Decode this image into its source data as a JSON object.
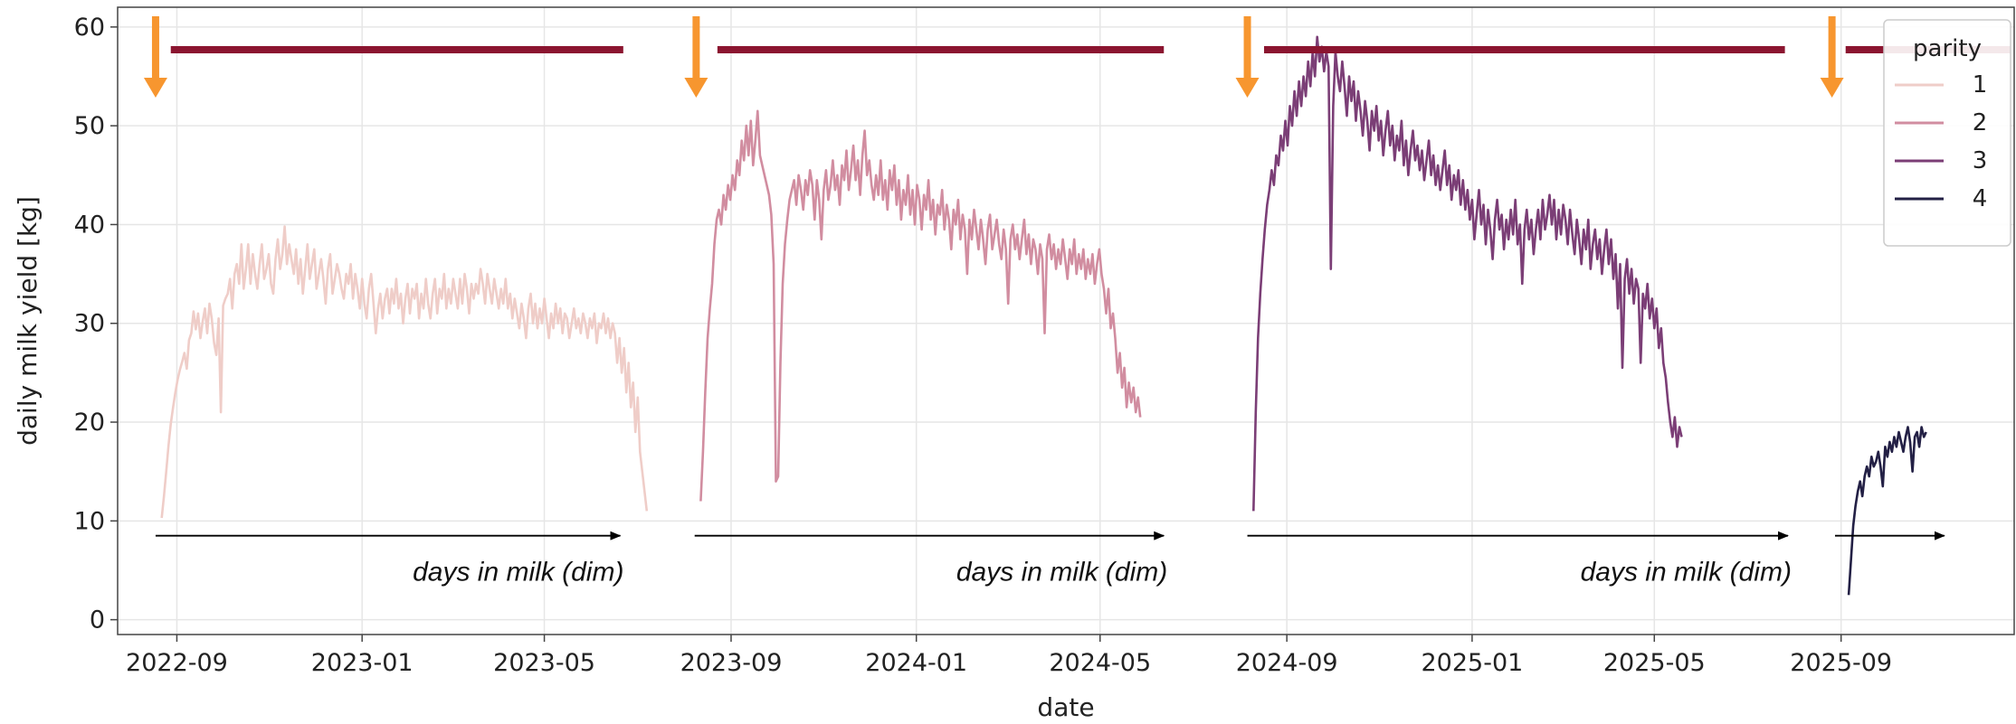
{
  "chart_data": {
    "type": "line",
    "title": "",
    "xlabel": "date",
    "ylabel": "daily milk yield [kg]",
    "xlim": [
      "2022-07-24",
      "2025-12-24"
    ],
    "ylim": [
      -1.5,
      62
    ],
    "x_ticks": [
      "2022-09",
      "2023-01",
      "2023-05",
      "2023-09",
      "2024-01",
      "2024-05",
      "2024-09",
      "2025-01",
      "2025-05",
      "2025-09"
    ],
    "y_ticks": [
      0,
      10,
      20,
      30,
      40,
      50,
      60
    ],
    "grid": true,
    "legend": {
      "title": "parity",
      "position": "top-right"
    },
    "series": [
      {
        "name": "1",
        "color": "#efcdc8",
        "start": "2022-08-22",
        "values": [
          10.3,
          12.5,
          15.0,
          17.6,
          19.8,
          21.5,
          23.0,
          24.3,
          25.3,
          26.1,
          27.0,
          25.4,
          28.3,
          29.0,
          31.2,
          29.4,
          31.0,
          28.5,
          30.2,
          31.5,
          29.0,
          32.0,
          30.5,
          28.0,
          26.8,
          30.5,
          21.0,
          31.8,
          32.5,
          33.0,
          34.5,
          31.5,
          35.0,
          36.0,
          34.0,
          38.0,
          33.5,
          35.5,
          38.0,
          34.0,
          37.0,
          35.0,
          33.5,
          36.0,
          38.0,
          34.5,
          35.5,
          37.0,
          34.0,
          33.0,
          36.5,
          38.5,
          35.5,
          37.0,
          39.8,
          36.0,
          38.0,
          36.5,
          35.0,
          37.5,
          34.0,
          36.5,
          33.0,
          35.5,
          38.0,
          34.5,
          36.0,
          37.5,
          33.5,
          35.0,
          36.5,
          34.5,
          32.0,
          35.5,
          37.0,
          33.0,
          34.5,
          36.0,
          35.0,
          33.5,
          32.5,
          35.0,
          34.0,
          36.0,
          32.5,
          35.0,
          33.5,
          31.5,
          34.5,
          32.0,
          30.5,
          33.5,
          35.0,
          32.0,
          29.0,
          31.5,
          33.0,
          30.5,
          32.5,
          33.5,
          31.0,
          33.5,
          32.0,
          34.5,
          31.5,
          33.0,
          30.0,
          32.5,
          34.0,
          31.0,
          33.5,
          32.5,
          34.0,
          30.5,
          33.0,
          31.5,
          34.5,
          32.0,
          30.5,
          33.0,
          34.5,
          31.0,
          33.5,
          32.5,
          35.0,
          31.5,
          33.5,
          32.0,
          34.5,
          33.0,
          31.5,
          34.5,
          32.0,
          35.0,
          33.5,
          31.0,
          34.0,
          32.5,
          34.0,
          33.0,
          35.5,
          34.0,
          32.0,
          35.0,
          33.5,
          32.0,
          34.5,
          33.0,
          31.5,
          33.5,
          32.0,
          34.5,
          31.5,
          33.0,
          30.5,
          32.5,
          31.0,
          29.5,
          32.0,
          30.5,
          28.5,
          31.5,
          33.0,
          30.0,
          32.0,
          29.5,
          31.5,
          30.0,
          32.5,
          30.5,
          28.5,
          31.0,
          29.5,
          32.0,
          30.0,
          31.5,
          29.0,
          31.0,
          30.5,
          28.5,
          30.0,
          31.5,
          29.5,
          30.5,
          29.0,
          31.0,
          30.0,
          28.5,
          30.5,
          29.5,
          31.0,
          28.0,
          30.0,
          29.5,
          31.0,
          29.0,
          30.5,
          28.5,
          30.0,
          29.0,
          26.0,
          28.5,
          25.0,
          27.5,
          23.0,
          26.0,
          21.5,
          24.0,
          19.0,
          22.5,
          17.0,
          15.0,
          13.0,
          11.0
        ]
      },
      {
        "name": "2",
        "color": "#d18da0",
        "start": "2023-08-12",
        "values": [
          12.0,
          17.0,
          23.0,
          28.5,
          31.5,
          34.0,
          38.0,
          40.5,
          41.5,
          40.0,
          43.0,
          41.5,
          44.0,
          42.5,
          45.0,
          43.5,
          46.5,
          45.0,
          48.5,
          46.5,
          50.0,
          47.0,
          50.5,
          46.0,
          48.5,
          51.5,
          47.0,
          46.0,
          45.0,
          44.0,
          43.0,
          41.0,
          36.0,
          14.0,
          14.5,
          26.0,
          34.0,
          38.0,
          40.5,
          42.5,
          43.5,
          44.5,
          42.0,
          45.0,
          43.5,
          41.5,
          44.5,
          43.0,
          45.5,
          44.0,
          40.5,
          44.5,
          42.5,
          38.5,
          43.5,
          45.5,
          42.5,
          44.0,
          46.5,
          43.5,
          45.0,
          42.0,
          46.0,
          44.5,
          47.5,
          43.5,
          45.5,
          48.0,
          44.5,
          46.5,
          43.0,
          47.0,
          49.5,
          45.0,
          46.5,
          44.0,
          42.5,
          45.0,
          43.0,
          46.5,
          42.5,
          44.5,
          41.5,
          45.5,
          43.5,
          46.0,
          42.0,
          44.5,
          40.5,
          43.5,
          42.0,
          45.0,
          41.0,
          43.5,
          40.0,
          44.0,
          42.5,
          39.5,
          43.0,
          41.5,
          44.5,
          40.5,
          42.5,
          39.0,
          42.0,
          41.0,
          43.5,
          39.5,
          42.0,
          40.5,
          37.5,
          41.5,
          40.0,
          42.5,
          38.5,
          41.0,
          39.5,
          35.0,
          40.5,
          38.5,
          41.5,
          39.5,
          37.5,
          40.5,
          38.5,
          36.0,
          39.5,
          41.0,
          37.5,
          39.0,
          40.5,
          38.0,
          36.5,
          39.5,
          37.5,
          32.0,
          38.5,
          40.0,
          37.5,
          39.0,
          36.5,
          38.5,
          40.5,
          37.0,
          39.0,
          36.0,
          38.5,
          37.5,
          35.0,
          38.0,
          36.5,
          29.0,
          37.5,
          39.0,
          36.5,
          38.0,
          35.5,
          37.5,
          36.0,
          38.5,
          36.5,
          34.5,
          37.5,
          36.0,
          38.5,
          35.0,
          37.0,
          35.5,
          37.5,
          34.5,
          36.5,
          35.0,
          37.0,
          34.0,
          36.0,
          37.5,
          35.0,
          33.5,
          31.0,
          33.5,
          29.5,
          31.0,
          28.5,
          25.0,
          27.0,
          23.5,
          25.5,
          21.5,
          24.0,
          22.0,
          23.5,
          21.0,
          22.5,
          20.5
        ]
      },
      {
        "name": "3",
        "color": "#7b3e76",
        "start": "2024-08-10",
        "values": [
          11.0,
          21.0,
          28.5,
          33.0,
          36.5,
          39.5,
          42.0,
          43.5,
          45.5,
          44.0,
          47.0,
          46.0,
          49.0,
          47.5,
          50.5,
          48.0,
          52.0,
          50.0,
          53.5,
          51.0,
          54.5,
          52.0,
          55.0,
          53.0,
          56.5,
          54.0,
          57.5,
          55.0,
          59.0,
          56.5,
          58.0,
          55.5,
          57.5,
          56.0,
          35.5,
          52.0,
          57.5,
          55.0,
          53.5,
          56.5,
          54.0,
          51.0,
          55.0,
          52.5,
          54.5,
          50.5,
          53.5,
          51.5,
          49.0,
          52.5,
          50.5,
          47.5,
          51.5,
          49.5,
          52.0,
          48.5,
          50.5,
          47.0,
          49.5,
          51.5,
          48.0,
          50.0,
          46.5,
          49.0,
          47.5,
          50.5,
          46.0,
          48.5,
          45.0,
          47.5,
          49.5,
          46.5,
          48.0,
          45.5,
          47.5,
          44.5,
          46.5,
          48.5,
          45.0,
          47.0,
          44.0,
          46.0,
          43.5,
          45.5,
          47.5,
          44.0,
          46.0,
          42.5,
          45.0,
          43.5,
          45.5,
          42.0,
          44.5,
          41.5,
          43.5,
          40.5,
          42.5,
          38.5,
          41.0,
          43.5,
          40.0,
          42.0,
          38.0,
          41.5,
          39.5,
          36.5,
          40.5,
          42.5,
          39.5,
          41.0,
          37.5,
          40.5,
          38.5,
          41.5,
          39.0,
          42.5,
          38.0,
          40.0,
          34.0,
          39.5,
          41.5,
          38.5,
          40.5,
          37.0,
          39.5,
          41.5,
          38.5,
          42.5,
          39.5,
          41.0,
          43.0,
          40.0,
          42.5,
          38.5,
          41.5,
          39.0,
          42.0,
          40.5,
          38.0,
          41.5,
          39.0,
          37.0,
          40.5,
          38.5,
          36.0,
          39.5,
          37.5,
          40.5,
          35.5,
          38.0,
          39.5,
          36.5,
          38.5,
          35.0,
          37.5,
          39.5,
          36.0,
          38.5,
          34.5,
          37.0,
          31.5,
          36.0,
          25.5,
          34.5,
          36.5,
          33.0,
          35.5,
          32.0,
          34.5,
          33.5,
          26.0,
          33.0,
          31.5,
          34.0,
          30.5,
          32.5,
          29.5,
          31.5,
          27.5,
          29.5,
          26.0,
          24.5,
          22.0,
          20.0,
          18.5,
          20.5,
          17.5,
          19.5,
          18.5
        ]
      },
      {
        "name": "4",
        "color": "#232045",
        "start": "2025-09-06",
        "values": [
          2.5,
          6.0,
          9.5,
          11.5,
          13.0,
          14.0,
          12.5,
          14.5,
          15.5,
          14.5,
          16.5,
          15.5,
          16.0,
          17.0,
          15.5,
          13.5,
          17.5,
          16.5,
          18.0,
          17.0,
          18.5,
          17.5,
          19.0,
          18.0,
          17.0,
          18.5,
          19.5,
          18.0,
          15.0,
          18.5,
          19.0,
          17.5,
          19.5,
          18.5,
          19.0
        ]
      }
    ],
    "annotations": [
      {
        "text": "days in milk (dim)",
        "x_from": "2022-08-18",
        "x_to": "2023-06-20",
        "y": 8.5
      },
      {
        "text": "days in milk (dim)",
        "x_from": "2023-08-08",
        "x_to": "2024-06-12",
        "y": 8.5
      },
      {
        "text": "days in milk (dim)",
        "x_from": "2024-08-06",
        "x_to": "2025-07-28",
        "y": 8.5
      },
      {
        "text": "",
        "x_from": "2025-08-28",
        "x_to": "2025-11-08",
        "y": 8.5
      }
    ],
    "calving_markers": [
      "2022-08-18",
      "2023-08-09",
      "2024-08-06",
      "2025-08-26"
    ],
    "lactation_bars": [
      {
        "start": "2022-08-28",
        "end": "2023-06-22"
      },
      {
        "start": "2023-08-23",
        "end": "2024-06-12"
      },
      {
        "start": "2024-08-17",
        "end": "2025-07-26"
      },
      {
        "start": "2025-09-04",
        "end": "2025-12-24"
      }
    ],
    "marker_colors": {
      "calving_arrow": "#f7962f",
      "lactation_bar": "#8b1530",
      "annotation_arrow": "#000000"
    }
  }
}
